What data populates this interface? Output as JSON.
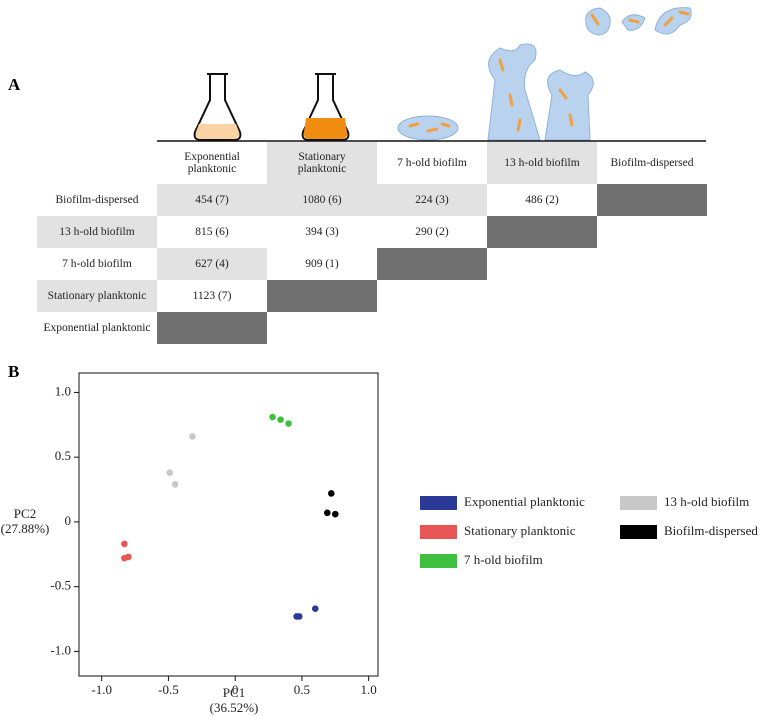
{
  "panel_labels": [
    "A",
    "B"
  ],
  "table": {
    "columns": [
      "Exponential planktonic",
      "Stationary planktonic",
      "7 h-old biofilm",
      "13 h-old biofilm",
      "Biofilm-dispersed"
    ],
    "rows": [
      {
        "label": "Biofilm-dispersed",
        "cells": [
          "454 (7)",
          "1080 (6)",
          "224 (3)",
          "486 (2)"
        ]
      },
      {
        "label": "13 h-old biofilm",
        "cells": [
          "815 (6)",
          "394 (3)",
          "290 (2)"
        ]
      },
      {
        "label": "7 h-old biofilm",
        "cells": [
          "627 (4)",
          "909 (1)"
        ]
      },
      {
        "label": "Stationary planktonic",
        "cells": [
          "1123 (7)"
        ]
      },
      {
        "label": "Exponential planktonic",
        "cells": []
      }
    ]
  },
  "chart_data": {
    "type": "scatter",
    "xlabel_lines": [
      "PC1",
      "(36.52%)"
    ],
    "ylabel_lines": [
      "PC2",
      "(27.88%)"
    ],
    "xlim": [
      -1.17,
      1.07
    ],
    "ylim": [
      -1.19,
      1.15
    ],
    "xticks": [
      {
        "value": -1,
        "label": "-1.0"
      },
      -0.5,
      0,
      0.5,
      {
        "value": 1,
        "label": "1.0"
      }
    ],
    "yticks": [
      {
        "value": -1,
        "label": "-1.0"
      },
      -0.5,
      0,
      0.5,
      {
        "value": 1,
        "label": "1.0"
      }
    ],
    "grid": false,
    "series": [
      {
        "name": "Exponential planktonic",
        "color": "#2b3a97",
        "x": [
          0.46,
          0.48,
          0.6
        ],
        "y": [
          -0.73,
          -0.73,
          -0.67
        ]
      },
      {
        "name": "Stationary planktonic",
        "color": "#e85555",
        "x": [
          -0.83,
          -0.83,
          -0.8
        ],
        "y": [
          -0.17,
          -0.28,
          -0.27
        ]
      },
      {
        "name": "7 h-old biofilm",
        "color": "#3fbf3f",
        "x": [
          0.28,
          0.34,
          0.4
        ],
        "y": [
          0.81,
          0.79,
          0.76
        ]
      },
      {
        "name": "13 h-old biofilm",
        "color": "#c8c8c8",
        "x": [
          -0.32,
          -0.49,
          -0.45
        ],
        "y": [
          0.66,
          0.38,
          0.29
        ]
      },
      {
        "name": "Biofilm-dispersed",
        "color": "#000000",
        "x": [
          0.72,
          0.69,
          0.75
        ],
        "y": [
          0.22,
          0.07,
          0.06
        ]
      }
    ]
  }
}
